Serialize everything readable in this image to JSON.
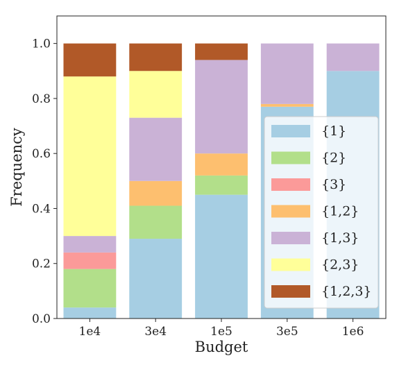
{
  "chart_data": {
    "type": "bar",
    "stacked": true,
    "categories": [
      "1e4",
      "3e4",
      "1e5",
      "3e5",
      "1e6"
    ],
    "xlabel": "Budget",
    "ylabel": "Frequency",
    "ylim": [
      0,
      1.1
    ],
    "yticks": [
      "0.0",
      "0.2",
      "0.4",
      "0.6",
      "0.8",
      "1.0"
    ],
    "ytick_values": [
      0,
      0.2,
      0.4,
      0.6,
      0.8,
      1.0
    ],
    "grid": false,
    "legend_placement": "lower-right",
    "series": [
      {
        "name": "{1}",
        "color": "#a6cee3",
        "values": [
          0.04,
          0.29,
          0.45,
          0.77,
          0.9
        ]
      },
      {
        "name": "{2}",
        "color": "#b2df8a",
        "values": [
          0.14,
          0.12,
          0.07,
          0.0,
          0.0
        ]
      },
      {
        "name": "{3}",
        "color": "#fb9a99",
        "values": [
          0.06,
          0.0,
          0.0,
          0.0,
          0.0
        ]
      },
      {
        "name": "{1,2}",
        "color": "#fdbf6f",
        "values": [
          0.0,
          0.09,
          0.08,
          0.01,
          0.0
        ]
      },
      {
        "name": "{1,3}",
        "color": "#cab2d6",
        "values": [
          0.06,
          0.23,
          0.34,
          0.22,
          0.1
        ]
      },
      {
        "name": "{2,3}",
        "color": "#ffff99",
        "values": [
          0.58,
          0.17,
          0.0,
          0.0,
          0.0
        ]
      },
      {
        "name": "{1,2,3}",
        "color": "#b15928",
        "values": [
          0.12,
          0.1,
          0.06,
          0.0,
          0.0
        ]
      }
    ]
  }
}
